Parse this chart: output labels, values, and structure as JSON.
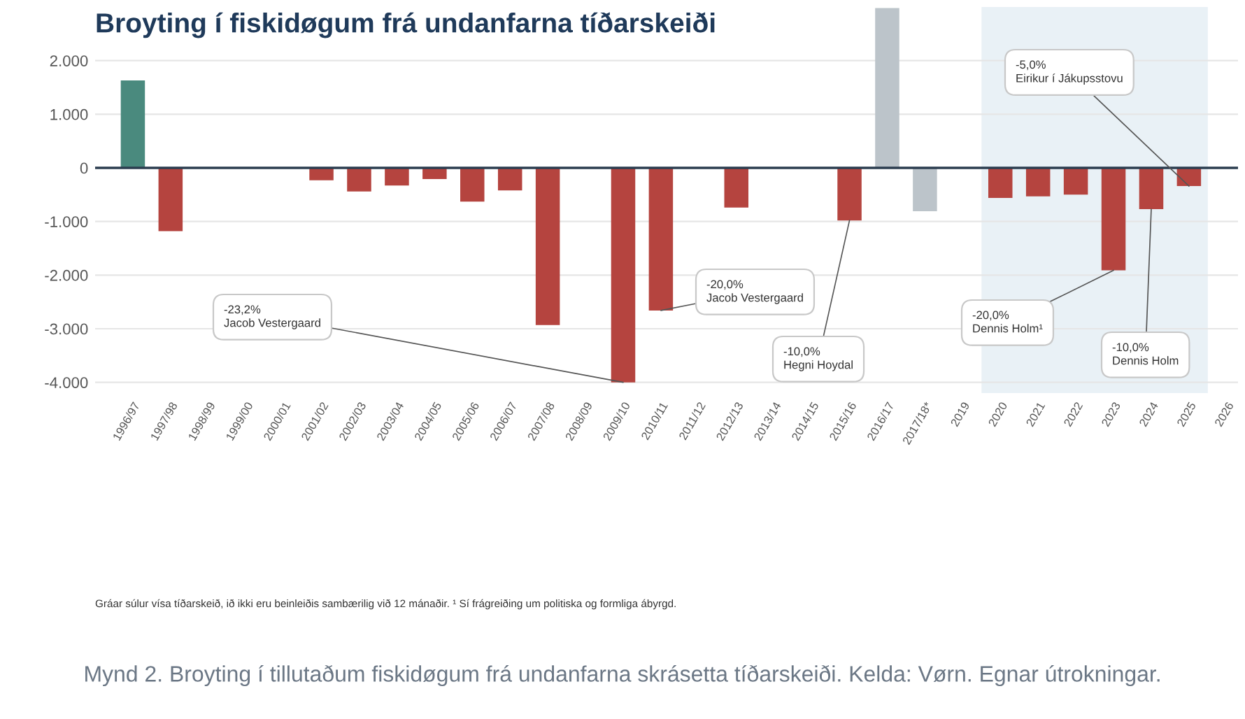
{
  "chart_data": {
    "type": "bar",
    "title": "Broyting í fiskidøgum frá undanfarna tíðarskeiði",
    "categories": [
      "1996/97",
      "1997/98",
      "1998/99",
      "1999/00",
      "2000/01",
      "2001/02",
      "2002/03",
      "2003/04",
      "2004/05",
      "2005/06",
      "2006/07",
      "2007/08",
      "2008/09",
      "2009/10",
      "2010/11",
      "2011/12",
      "2012/13",
      "2013/14",
      "2014/15",
      "2015/16",
      "2016/17",
      "2017/18*",
      "2019",
      "2020",
      "2021",
      "2022",
      "2023",
      "2024",
      "2025",
      "2026"
    ],
    "values": [
      1630,
      -1180,
      null,
      null,
      null,
      -230,
      -440,
      -330,
      -210,
      -630,
      -420,
      -2930,
      null,
      -4000,
      -2660,
      null,
      -740,
      null,
      null,
      -980,
      2980,
      -810,
      null,
      -560,
      -530,
      -500,
      -1910,
      -770,
      -340,
      null
    ],
    "colors": [
      "#4a8a7e",
      "#b5443f",
      "#b5443f",
      "#b5443f",
      "#b5443f",
      "#b5443f",
      "#b5443f",
      "#b5443f",
      "#b5443f",
      "#b5443f",
      "#b5443f",
      "#b5443f",
      "#b5443f",
      "#b5443f",
      "#b5443f",
      "#b5443f",
      "#b5443f",
      "#b5443f",
      "#b5443f",
      "#b5443f",
      "#bcc4ca",
      "#bcc4ca",
      "#b5443f",
      "#b5443f",
      "#b5443f",
      "#b5443f",
      "#b5443f",
      "#b5443f",
      "#b5443f",
      "#b5443f"
    ],
    "ylim": [
      -4200,
      3000
    ],
    "yticks": [
      {
        "value": -4000,
        "label": "-4.000"
      },
      {
        "value": -3000,
        "label": "-3.000"
      },
      {
        "value": -2000,
        "label": "-2.000"
      },
      {
        "value": -1000,
        "label": "-1.000"
      },
      0,
      {
        "value": 1000,
        "label": "1.000"
      },
      {
        "value": 2000,
        "label": "2.000"
      }
    ],
    "grid": "y",
    "bands": [
      {
        "axis": "x",
        "from": "2020",
        "to": "2025",
        "color": "#e9f1f6"
      }
    ],
    "annotations": [
      {
        "text": "-23,2%\nJacob Vestergaard",
        "x": "2009/10",
        "y": -4000
      },
      {
        "text": "-20,0%\nJacob Vestergaard",
        "x": "2010/11",
        "y": -2660
      },
      {
        "text": "-10,0%\nHegni Hoydal",
        "x": "2015/16",
        "y": -980
      },
      {
        "text": "-20,0%\nDennis Holm¹",
        "x": "2023",
        "y": -1910
      },
      {
        "text": "-10,0%\nDennis Holm",
        "x": "2024",
        "y": -770
      },
      {
        "text": "-5,0%\nEirikur í Jákupsstovu",
        "x": "2025",
        "y": -340
      },
      "Gráar súlur vísa tíðarskeið, ið ikki eru beinleiðis sambærilig við 12 mánaðir. ¹ Sí frágreiðing um politiska og formliga ábyrgd.",
      "Mynd 2. Broyting í tillutaðum fiskidøgum frá undanfarna skrásetta tíðarskeiði. Kelda: Vørn. Egnar útrokningar."
    ]
  }
}
